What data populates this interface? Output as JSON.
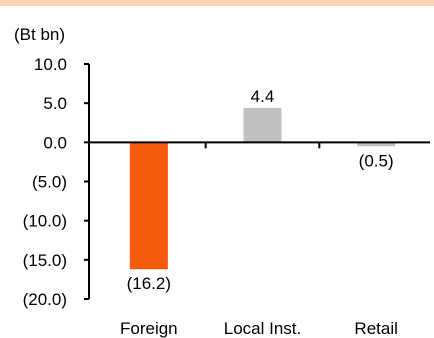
{
  "chart_data": {
    "type": "bar",
    "categories": [
      "Foreign",
      "Local Inst.",
      "Retail"
    ],
    "values": [
      -16.2,
      4.4,
      -0.5
    ],
    "value_labels": [
      "(16.2)",
      "4.4",
      "(0.5)"
    ],
    "unit_label": "(Bt bn)",
    "ylim": [
      -20,
      10
    ],
    "yticks": [
      10,
      5,
      0,
      -5,
      -10,
      -15,
      -20
    ],
    "ytick_labels": [
      "10.0",
      "5.0",
      "0.0",
      "(5.0)",
      "(10.0)",
      "(15.0)",
      "(20.0)"
    ],
    "bar_colors": [
      "#F55A0F",
      "#C0C0C0",
      "#C0C0C0"
    ],
    "grid": false,
    "legend": "none"
  },
  "colors": {
    "top_border": "#F9D5B5",
    "axis": "#000000"
  }
}
